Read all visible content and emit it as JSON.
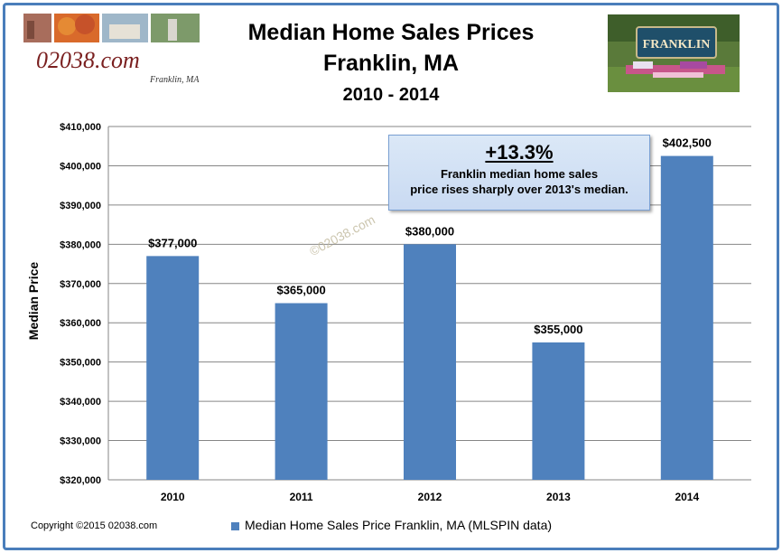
{
  "header": {
    "title_line1": "Median Home Sales Prices",
    "title_line2": "Franklin, MA",
    "title_line3": "2010 - 2014"
  },
  "logo": {
    "site": "02038.com",
    "town": "Franklin, MA"
  },
  "sign_photo": {
    "sign_text": "FRANKLIN"
  },
  "callout": {
    "headline": "+13.3%",
    "line1": "Franklin median home sales",
    "line2": "price rises sharply over 2013's median."
  },
  "watermark": "©02038.com",
  "footer": {
    "copyright": "Copyright ©2015 02038.com"
  },
  "colors": {
    "bar": "#4f81bd",
    "frame": "#4a7ebb",
    "grid": "#868686"
  },
  "chart_data": {
    "type": "bar",
    "categories": [
      "2010",
      "2011",
      "2012",
      "2013",
      "2014"
    ],
    "series": [
      {
        "name": "Median Home Sales Price Franklin, MA (MLSPIN data)",
        "values": [
          377000,
          365000,
          380000,
          355000,
          402500
        ]
      }
    ],
    "data_labels": [
      "$377,000",
      "$365,000",
      "$380,000",
      "$355,000",
      "$402,500"
    ],
    "y_ticks": [
      "$320,000",
      "$330,000",
      "$340,000",
      "$350,000",
      "$360,000",
      "$370,000",
      "$380,000",
      "$390,000",
      "$400,000",
      "$410,000"
    ],
    "title": "Median Home Sales Prices Franklin, MA 2010 - 2014",
    "xlabel": "",
    "ylabel": "Median Price",
    "ylim": [
      320000,
      410000
    ],
    "grid": true,
    "legend_position": "bottom"
  }
}
